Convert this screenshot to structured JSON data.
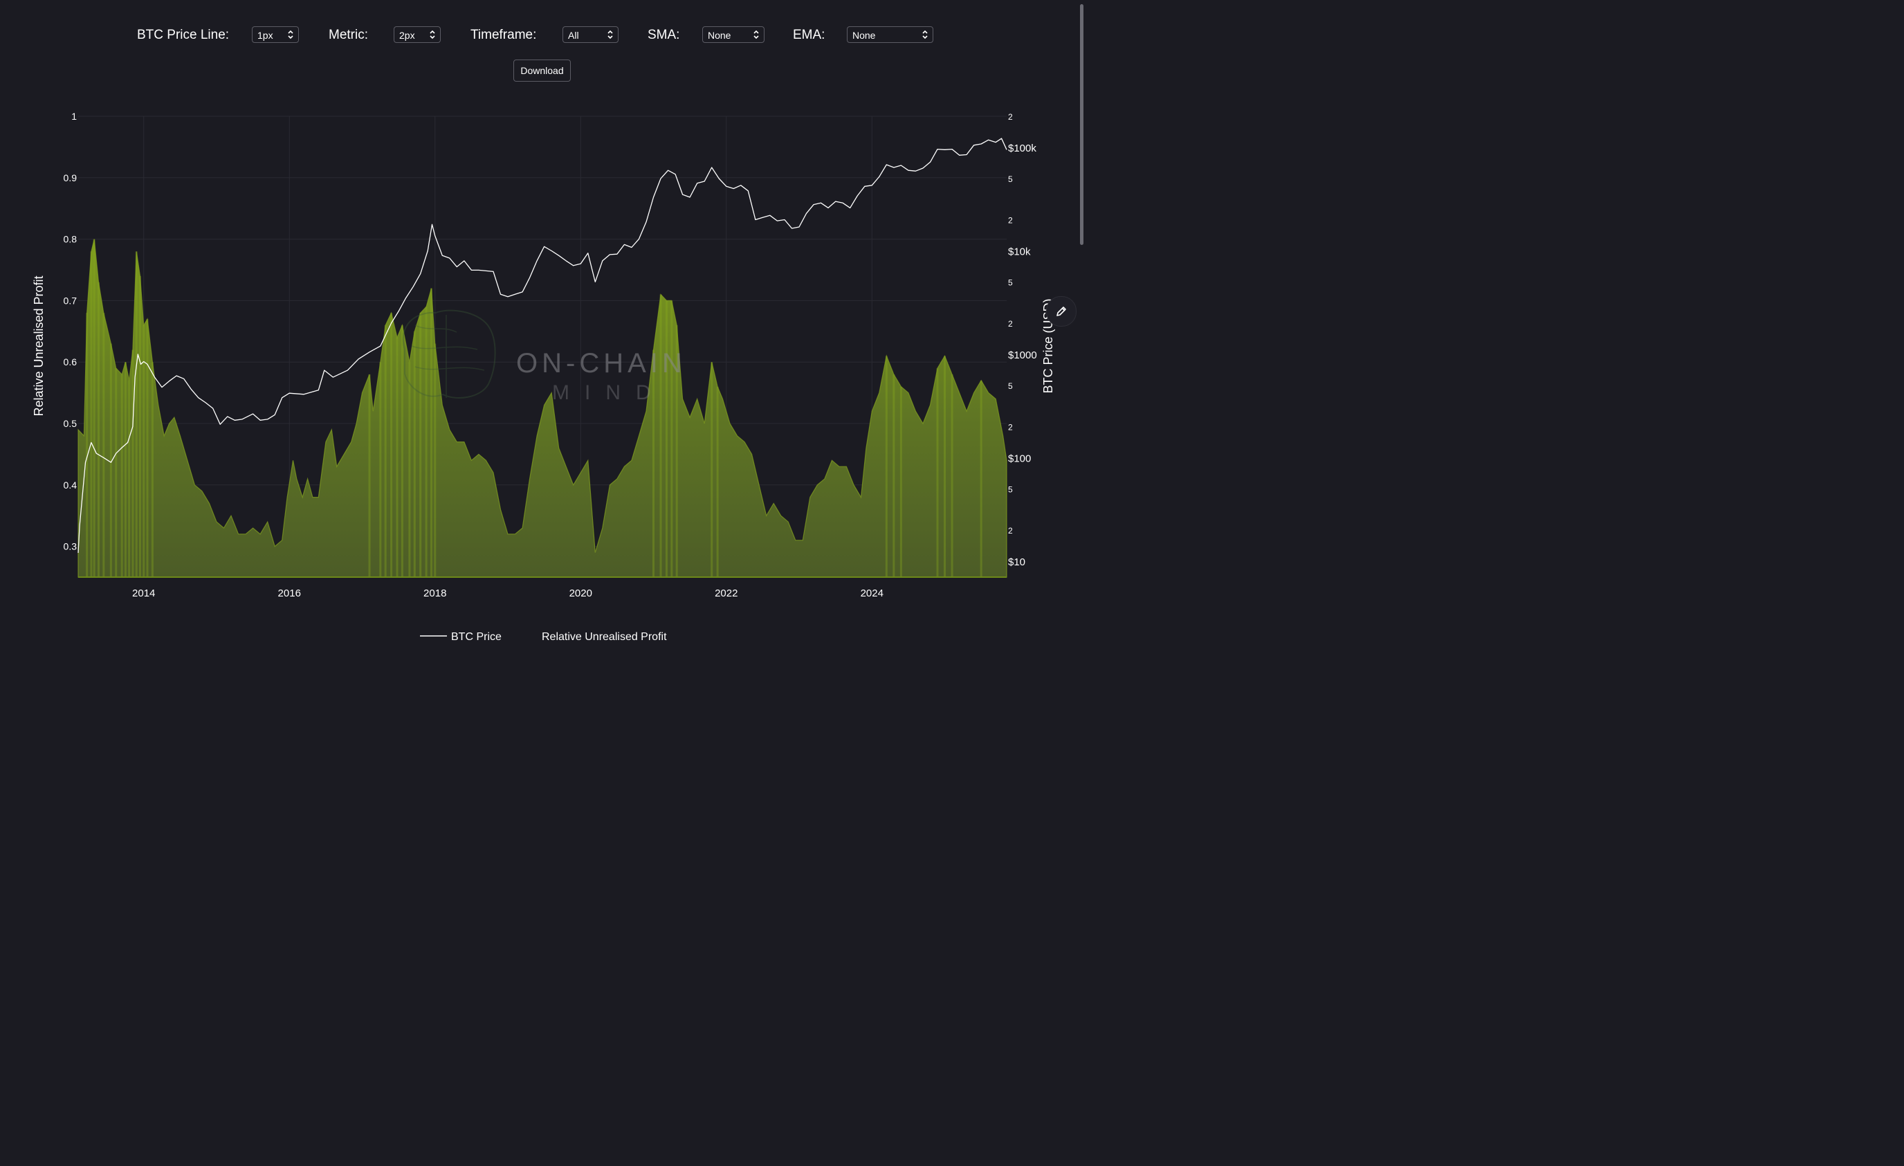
{
  "controls": {
    "btc_price_line": {
      "label": "BTC Price Line:",
      "value": "1px"
    },
    "metric": {
      "label": "Metric:",
      "value": "2px"
    },
    "timeframe": {
      "label": "Timeframe:",
      "value": "All"
    },
    "sma": {
      "label": "SMA:",
      "value": "None"
    },
    "ema": {
      "label": "EMA:",
      "value": "None"
    },
    "download_label": "Download"
  },
  "watermark": {
    "line1": "ON-CHAIN",
    "line2": "MIND"
  },
  "icons": {
    "edit": "pencil-icon",
    "select": "chevron-updown-icon"
  },
  "colors": {
    "background": "#1b1b22",
    "price_line": "#ffffff",
    "area_fill": "#6b8a1a",
    "area_fill_dark": "#4a5a25"
  },
  "chart_data": {
    "type": "area",
    "xlabel": "",
    "ylabel_left": "Relative Unrealised Profit",
    "ylabel_right": "BTC Price (USD)",
    "x_range": [
      2013.1,
      2025.85
    ],
    "x_ticks": [
      "2014",
      "2016",
      "2018",
      "2020",
      "2022",
      "2024"
    ],
    "y_left": {
      "range": [
        0.25,
        1.0
      ],
      "ticks": [
        "0.3",
        "0.4",
        "0.5",
        "0.6",
        "0.7",
        "0.8",
        "0.9",
        "1"
      ]
    },
    "y_right": {
      "scale": "log",
      "range": [
        7,
        200000
      ],
      "major_ticks": [
        "$10",
        "$100",
        "$1000",
        "$10k",
        "$100k"
      ],
      "minor_ticks": [
        "2",
        "5",
        "2",
        "5",
        "2",
        "5",
        "2",
        "5",
        "2"
      ]
    },
    "legend": {
      "position": "bottom",
      "items": [
        "BTC Price",
        "Relative Unrealised Profit"
      ]
    },
    "grid": true,
    "series": [
      {
        "name": "Relative Unrealised Profit",
        "axis": "left",
        "points": [
          [
            2013.1,
            0.49
          ],
          [
            2013.18,
            0.48
          ],
          [
            2013.22,
            0.68
          ],
          [
            2013.28,
            0.78
          ],
          [
            2013.32,
            0.8
          ],
          [
            2013.38,
            0.73
          ],
          [
            2013.45,
            0.68
          ],
          [
            2013.55,
            0.63
          ],
          [
            2013.62,
            0.59
          ],
          [
            2013.7,
            0.58
          ],
          [
            2013.75,
            0.6
          ],
          [
            2013.8,
            0.57
          ],
          [
            2013.85,
            0.62
          ],
          [
            2013.9,
            0.78
          ],
          [
            2013.95,
            0.74
          ],
          [
            2014.0,
            0.66
          ],
          [
            2014.05,
            0.67
          ],
          [
            2014.12,
            0.6
          ],
          [
            2014.2,
            0.53
          ],
          [
            2014.28,
            0.48
          ],
          [
            2014.35,
            0.5
          ],
          [
            2014.42,
            0.51
          ],
          [
            2014.5,
            0.48
          ],
          [
            2014.6,
            0.44
          ],
          [
            2014.7,
            0.4
          ],
          [
            2014.8,
            0.39
          ],
          [
            2014.9,
            0.37
          ],
          [
            2015.0,
            0.34
          ],
          [
            2015.1,
            0.33
          ],
          [
            2015.2,
            0.35
          ],
          [
            2015.3,
            0.32
          ],
          [
            2015.4,
            0.32
          ],
          [
            2015.5,
            0.33
          ],
          [
            2015.6,
            0.32
          ],
          [
            2015.7,
            0.34
          ],
          [
            2015.8,
            0.3
          ],
          [
            2015.9,
            0.31
          ],
          [
            2015.97,
            0.38
          ],
          [
            2016.05,
            0.44
          ],
          [
            2016.1,
            0.41
          ],
          [
            2016.18,
            0.38
          ],
          [
            2016.25,
            0.41
          ],
          [
            2016.32,
            0.38
          ],
          [
            2016.4,
            0.38
          ],
          [
            2016.5,
            0.47
          ],
          [
            2016.58,
            0.49
          ],
          [
            2016.65,
            0.43
          ],
          [
            2016.75,
            0.45
          ],
          [
            2016.85,
            0.47
          ],
          [
            2016.92,
            0.5
          ],
          [
            2017.0,
            0.55
          ],
          [
            2017.1,
            0.58
          ],
          [
            2017.15,
            0.52
          ],
          [
            2017.25,
            0.6
          ],
          [
            2017.32,
            0.66
          ],
          [
            2017.4,
            0.68
          ],
          [
            2017.48,
            0.64
          ],
          [
            2017.55,
            0.66
          ],
          [
            2017.65,
            0.6
          ],
          [
            2017.72,
            0.65
          ],
          [
            2017.8,
            0.68
          ],
          [
            2017.88,
            0.69
          ],
          [
            2017.95,
            0.72
          ],
          [
            2018.0,
            0.63
          ],
          [
            2018.1,
            0.53
          ],
          [
            2018.2,
            0.49
          ],
          [
            2018.3,
            0.47
          ],
          [
            2018.4,
            0.47
          ],
          [
            2018.5,
            0.44
          ],
          [
            2018.6,
            0.45
          ],
          [
            2018.7,
            0.44
          ],
          [
            2018.8,
            0.42
          ],
          [
            2018.9,
            0.36
          ],
          [
            2019.0,
            0.32
          ],
          [
            2019.1,
            0.32
          ],
          [
            2019.2,
            0.33
          ],
          [
            2019.3,
            0.41
          ],
          [
            2019.4,
            0.48
          ],
          [
            2019.5,
            0.53
          ],
          [
            2019.6,
            0.55
          ],
          [
            2019.7,
            0.46
          ],
          [
            2019.8,
            0.43
          ],
          [
            2019.9,
            0.4
          ],
          [
            2020.0,
            0.42
          ],
          [
            2020.1,
            0.44
          ],
          [
            2020.2,
            0.29
          ],
          [
            2020.3,
            0.33
          ],
          [
            2020.4,
            0.4
          ],
          [
            2020.5,
            0.41
          ],
          [
            2020.6,
            0.43
          ],
          [
            2020.7,
            0.44
          ],
          [
            2020.8,
            0.48
          ],
          [
            2020.9,
            0.52
          ],
          [
            2021.0,
            0.62
          ],
          [
            2021.1,
            0.71
          ],
          [
            2021.18,
            0.7
          ],
          [
            2021.25,
            0.7
          ],
          [
            2021.32,
            0.66
          ],
          [
            2021.4,
            0.54
          ],
          [
            2021.5,
            0.51
          ],
          [
            2021.6,
            0.54
          ],
          [
            2021.7,
            0.5
          ],
          [
            2021.8,
            0.6
          ],
          [
            2021.88,
            0.56
          ],
          [
            2021.95,
            0.54
          ],
          [
            2022.05,
            0.5
          ],
          [
            2022.15,
            0.48
          ],
          [
            2022.25,
            0.47
          ],
          [
            2022.35,
            0.45
          ],
          [
            2022.45,
            0.4
          ],
          [
            2022.55,
            0.35
          ],
          [
            2022.65,
            0.37
          ],
          [
            2022.75,
            0.35
          ],
          [
            2022.85,
            0.34
          ],
          [
            2022.95,
            0.31
          ],
          [
            2023.05,
            0.31
          ],
          [
            2023.15,
            0.38
          ],
          [
            2023.25,
            0.4
          ],
          [
            2023.35,
            0.41
          ],
          [
            2023.45,
            0.44
          ],
          [
            2023.55,
            0.43
          ],
          [
            2023.65,
            0.43
          ],
          [
            2023.75,
            0.4
          ],
          [
            2023.85,
            0.38
          ],
          [
            2023.92,
            0.46
          ],
          [
            2024.0,
            0.52
          ],
          [
            2024.1,
            0.55
          ],
          [
            2024.2,
            0.61
          ],
          [
            2024.3,
            0.58
          ],
          [
            2024.4,
            0.56
          ],
          [
            2024.5,
            0.55
          ],
          [
            2024.6,
            0.52
          ],
          [
            2024.7,
            0.5
          ],
          [
            2024.8,
            0.53
          ],
          [
            2024.9,
            0.59
          ],
          [
            2025.0,
            0.61
          ],
          [
            2025.1,
            0.58
          ],
          [
            2025.2,
            0.55
          ],
          [
            2025.3,
            0.52
          ],
          [
            2025.4,
            0.55
          ],
          [
            2025.5,
            0.57
          ],
          [
            2025.6,
            0.55
          ],
          [
            2025.7,
            0.54
          ],
          [
            2025.8,
            0.48
          ],
          [
            2025.85,
            0.44
          ]
        ]
      },
      {
        "name": "BTC Price",
        "axis": "right",
        "points": [
          [
            2013.1,
            12
          ],
          [
            2013.12,
            22
          ],
          [
            2013.2,
            90
          ],
          [
            2013.28,
            140
          ],
          [
            2013.35,
            110
          ],
          [
            2013.45,
            100
          ],
          [
            2013.55,
            90
          ],
          [
            2013.62,
            110
          ],
          [
            2013.7,
            125
          ],
          [
            2013.78,
            140
          ],
          [
            2013.85,
            200
          ],
          [
            2013.88,
            600
          ],
          [
            2013.92,
            1000
          ],
          [
            2013.96,
            800
          ],
          [
            2014.0,
            850
          ],
          [
            2014.05,
            800
          ],
          [
            2014.15,
            600
          ],
          [
            2014.25,
            480
          ],
          [
            2014.35,
            550
          ],
          [
            2014.45,
            620
          ],
          [
            2014.55,
            580
          ],
          [
            2014.65,
            460
          ],
          [
            2014.75,
            380
          ],
          [
            2014.85,
            340
          ],
          [
            2014.95,
            300
          ],
          [
            2015.05,
            210
          ],
          [
            2015.15,
            250
          ],
          [
            2015.25,
            230
          ],
          [
            2015.35,
            235
          ],
          [
            2015.5,
            265
          ],
          [
            2015.6,
            230
          ],
          [
            2015.7,
            235
          ],
          [
            2015.8,
            260
          ],
          [
            2015.9,
            380
          ],
          [
            2016.0,
            420
          ],
          [
            2016.2,
            410
          ],
          [
            2016.4,
            450
          ],
          [
            2016.48,
            700
          ],
          [
            2016.6,
            600
          ],
          [
            2016.8,
            700
          ],
          [
            2016.95,
            900
          ],
          [
            2017.1,
            1050
          ],
          [
            2017.25,
            1200
          ],
          [
            2017.4,
            2000
          ],
          [
            2017.5,
            2600
          ],
          [
            2017.6,
            3500
          ],
          [
            2017.7,
            4500
          ],
          [
            2017.8,
            6000
          ],
          [
            2017.9,
            10000
          ],
          [
            2017.96,
            18000
          ],
          [
            2018.0,
            14000
          ],
          [
            2018.1,
            9000
          ],
          [
            2018.2,
            8500
          ],
          [
            2018.3,
            7000
          ],
          [
            2018.4,
            8000
          ],
          [
            2018.5,
            6500
          ],
          [
            2018.6,
            6500
          ],
          [
            2018.7,
            6400
          ],
          [
            2018.8,
            6300
          ],
          [
            2018.9,
            3800
          ],
          [
            2019.0,
            3600
          ],
          [
            2019.1,
            3800
          ],
          [
            2019.2,
            4000
          ],
          [
            2019.3,
            5500
          ],
          [
            2019.4,
            8000
          ],
          [
            2019.5,
            11000
          ],
          [
            2019.6,
            10000
          ],
          [
            2019.7,
            9000
          ],
          [
            2019.8,
            8000
          ],
          [
            2019.9,
            7200
          ],
          [
            2020.0,
            7500
          ],
          [
            2020.1,
            9500
          ],
          [
            2020.2,
            5000
          ],
          [
            2020.3,
            8000
          ],
          [
            2020.4,
            9200
          ],
          [
            2020.5,
            9300
          ],
          [
            2020.6,
            11500
          ],
          [
            2020.7,
            10800
          ],
          [
            2020.8,
            13000
          ],
          [
            2020.9,
            19000
          ],
          [
            2021.0,
            33000
          ],
          [
            2021.1,
            50000
          ],
          [
            2021.2,
            60000
          ],
          [
            2021.3,
            55000
          ],
          [
            2021.4,
            35000
          ],
          [
            2021.5,
            33000
          ],
          [
            2021.6,
            45000
          ],
          [
            2021.7,
            47000
          ],
          [
            2021.8,
            64000
          ],
          [
            2021.9,
            50000
          ],
          [
            2022.0,
            42000
          ],
          [
            2022.1,
            40000
          ],
          [
            2022.2,
            43000
          ],
          [
            2022.3,
            38000
          ],
          [
            2022.4,
            20000
          ],
          [
            2022.5,
            21000
          ],
          [
            2022.6,
            22000
          ],
          [
            2022.7,
            19500
          ],
          [
            2022.8,
            20000
          ],
          [
            2022.9,
            16500
          ],
          [
            2023.0,
            17000
          ],
          [
            2023.1,
            23000
          ],
          [
            2023.2,
            28000
          ],
          [
            2023.3,
            29000
          ],
          [
            2023.4,
            26000
          ],
          [
            2023.5,
            30000
          ],
          [
            2023.6,
            29000
          ],
          [
            2023.7,
            26000
          ],
          [
            2023.8,
            34000
          ],
          [
            2023.9,
            42000
          ],
          [
            2024.0,
            43000
          ],
          [
            2024.1,
            52000
          ],
          [
            2024.2,
            68000
          ],
          [
            2024.3,
            64000
          ],
          [
            2024.4,
            67000
          ],
          [
            2024.5,
            60000
          ],
          [
            2024.6,
            59000
          ],
          [
            2024.7,
            63000
          ],
          [
            2024.8,
            72000
          ],
          [
            2024.9,
            96000
          ],
          [
            2025.0,
            95000
          ],
          [
            2025.1,
            96000
          ],
          [
            2025.2,
            84000
          ],
          [
            2025.3,
            85000
          ],
          [
            2025.4,
            105000
          ],
          [
            2025.5,
            108000
          ],
          [
            2025.6,
            118000
          ],
          [
            2025.7,
            112000
          ],
          [
            2025.78,
            122000
          ],
          [
            2025.85,
            95000
          ]
        ]
      }
    ]
  }
}
